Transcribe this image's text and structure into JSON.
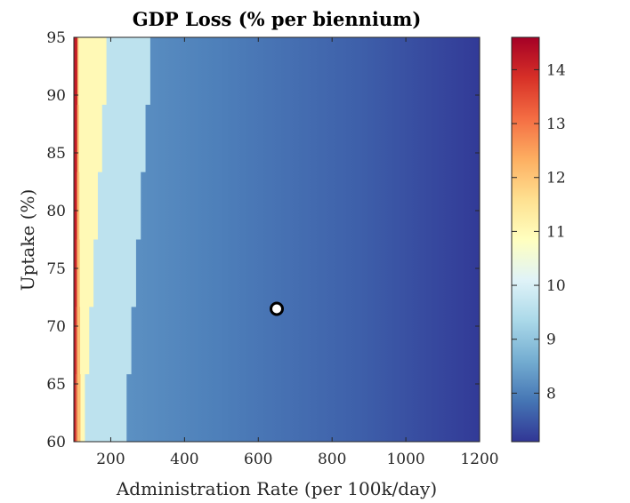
{
  "chart_data": {
    "type": "heatmap",
    "title": "GDP Loss (% per biennium)",
    "xlabel": "Administration Rate (per 100k/day)",
    "ylabel": "Uptake (%)",
    "xlim": [
      100,
      1200
    ],
    "ylim": [
      60,
      95
    ],
    "x_ticks": [
      200,
      400,
      600,
      800,
      1000,
      1200
    ],
    "y_ticks": [
      60,
      65,
      70,
      75,
      80,
      85,
      90,
      95
    ],
    "colorbar": {
      "range": [
        7.1,
        14.6
      ],
      "ticks": [
        8,
        9,
        10,
        11,
        12,
        13,
        14
      ],
      "colormap": "RdYlBu_r",
      "colors": [
        "#313695",
        "#4575b4",
        "#74add1",
        "#abd9e9",
        "#e0f3f8",
        "#ffffbf",
        "#fee090",
        "#fdae61",
        "#f46d43",
        "#d73027",
        "#a50026"
      ]
    },
    "grid": false,
    "value_function": "GDP loss decreases with administration rate; steep drop at low rates (≈14.5 near x=100) to ≈7.2 at x=1200; slight decrease with uptake",
    "band_boundaries": [
      {
        "value_above": 13.5,
        "points": [
          [
            105,
            60
          ],
          [
            110,
            95
          ]
        ]
      },
      {
        "value_above": 11.5,
        "points": [
          [
            118,
            60
          ],
          [
            112,
            95
          ]
        ]
      },
      {
        "value_above": 10.4,
        "points": [
          [
            130,
            60
          ],
          [
            200,
            95
          ]
        ]
      },
      {
        "value_above": 9.4,
        "points": [
          [
            243,
            60
          ],
          [
            320,
            95
          ]
        ]
      }
    ],
    "marker": {
      "x": 650,
      "y": 71.5
    }
  }
}
